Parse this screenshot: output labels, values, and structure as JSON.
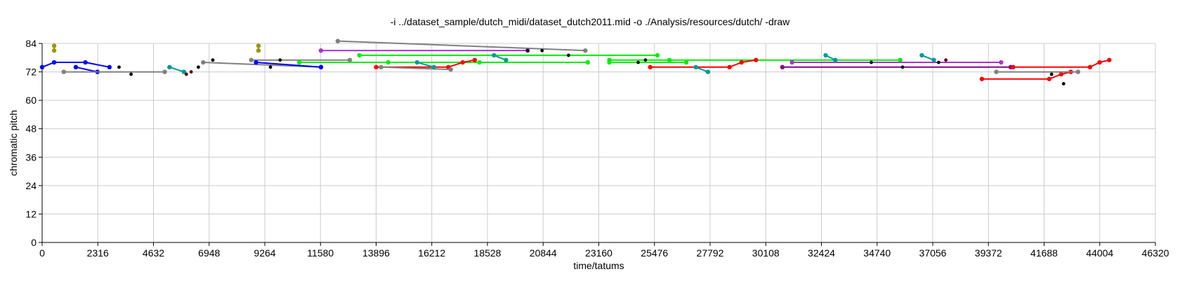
{
  "chart_data": {
    "type": "scatter",
    "title": "-i ../dataset_sample/dutch_midi/dataset_dutch2011.mid -o ./Analysis/resources/dutch/ -draw",
    "xlabel": "time/tatums",
    "ylabel": "chromatic pitch",
    "xlim": [
      0,
      46320
    ],
    "ylim": [
      0,
      84
    ],
    "x_ticks": [
      "0",
      "2316",
      "4632",
      "6948",
      "9264",
      "11580",
      "13896",
      "16212",
      "18528",
      "20844",
      "23160",
      "25476",
      "27792",
      "30108",
      "32424",
      "34740",
      "37056",
      "39372",
      "41688",
      "44004",
      "46320"
    ],
    "y_ticks": [
      "0",
      "12",
      "24",
      "36",
      "48",
      "60",
      "72",
      "84"
    ],
    "grid": true,
    "colors": {
      "blue": "#0000ff",
      "gray": "#808080",
      "teal": "#009999",
      "olive": "#999900",
      "green": "#00ee00",
      "magenta": "#aa33cc",
      "purple": "#880088",
      "red": "#ff0000",
      "black": "#000000",
      "darkred": "#660000",
      "grid": "#cccccc"
    },
    "series": [
      {
        "color": "blue",
        "points": [
          [
            0,
            74
          ],
          [
            500,
            76
          ],
          [
            1800,
            76
          ],
          [
            2800,
            74
          ]
        ]
      },
      {
        "color": "blue",
        "points": [
          [
            1400,
            74
          ],
          [
            2300,
            72
          ]
        ]
      },
      {
        "color": "gray",
        "points": [
          [
            900,
            72
          ],
          [
            5100,
            72
          ]
        ]
      },
      {
        "color": "teal",
        "points": [
          [
            5300,
            74
          ],
          [
            5900,
            72
          ]
        ]
      },
      {
        "color": "olive",
        "points": [
          [
            500,
            81
          ],
          [
            500,
            83
          ]
        ]
      },
      {
        "color": "olive",
        "points": [
          [
            9000,
            81
          ],
          [
            9000,
            83
          ]
        ]
      },
      {
        "color": "gray",
        "points": [
          [
            6700,
            76
          ],
          [
            11600,
            74
          ]
        ]
      },
      {
        "color": "gray",
        "points": [
          [
            8700,
            77
          ],
          [
            12800,
            77
          ]
        ]
      },
      {
        "color": "blue",
        "points": [
          [
            8900,
            76
          ],
          [
            11600,
            74
          ]
        ]
      },
      {
        "color": "gray",
        "points": [
          [
            12300,
            85
          ],
          [
            22600,
            81
          ]
        ]
      },
      {
        "color": "magenta",
        "points": [
          [
            11600,
            81
          ],
          [
            20200,
            81
          ]
        ]
      },
      {
        "color": "green",
        "points": [
          [
            13200,
            79
          ],
          [
            25600,
            79
          ]
        ]
      },
      {
        "color": "green",
        "points": [
          [
            10700,
            76
          ],
          [
            14400,
            76
          ],
          [
            18200,
            76
          ],
          [
            22700,
            76
          ]
        ]
      },
      {
        "color": "green",
        "points": [
          [
            23600,
            77
          ],
          [
            26100,
            77
          ],
          [
            35700,
            77
          ]
        ]
      },
      {
        "color": "green",
        "points": [
          [
            23600,
            76
          ],
          [
            26800,
            76
          ]
        ]
      },
      {
        "color": "red",
        "points": [
          [
            13900,
            74
          ],
          [
            16900,
            74
          ],
          [
            17500,
            76
          ],
          [
            18000,
            77
          ]
        ]
      },
      {
        "color": "gray",
        "points": [
          [
            14100,
            74
          ],
          [
            17000,
            73
          ]
        ]
      },
      {
        "color": "teal",
        "points": [
          [
            15600,
            76
          ],
          [
            16300,
            74
          ]
        ]
      },
      {
        "color": "teal",
        "points": [
          [
            18800,
            79
          ],
          [
            19300,
            77
          ]
        ]
      },
      {
        "color": "red",
        "points": [
          [
            25300,
            74
          ],
          [
            28600,
            74
          ],
          [
            29100,
            76
          ],
          [
            29700,
            77
          ]
        ]
      },
      {
        "color": "teal",
        "points": [
          [
            27200,
            74
          ],
          [
            27700,
            72
          ]
        ]
      },
      {
        "color": "purple",
        "points": [
          [
            30800,
            74
          ],
          [
            40300,
            74
          ]
        ]
      },
      {
        "color": "magenta",
        "points": [
          [
            31200,
            76
          ],
          [
            39900,
            76
          ]
        ]
      },
      {
        "color": "teal",
        "points": [
          [
            32600,
            79
          ],
          [
            33000,
            77
          ]
        ]
      },
      {
        "color": "teal",
        "points": [
          [
            36600,
            79
          ],
          [
            37100,
            77
          ]
        ]
      },
      {
        "color": "red",
        "points": [
          [
            40400,
            74
          ],
          [
            43600,
            74
          ],
          [
            44000,
            76
          ],
          [
            44400,
            77
          ]
        ]
      },
      {
        "color": "red",
        "points": [
          [
            39100,
            69
          ],
          [
            41900,
            69
          ],
          [
            42400,
            71
          ],
          [
            42800,
            72
          ]
        ]
      },
      {
        "color": "gray",
        "points": [
          [
            39700,
            72
          ],
          [
            43100,
            72
          ]
        ]
      }
    ],
    "dots": [
      {
        "color": "black",
        "x": 3200,
        "y": 74
      },
      {
        "color": "black",
        "x": 3700,
        "y": 71
      },
      {
        "color": "darkred",
        "x": 6000,
        "y": 71
      },
      {
        "color": "darkred",
        "x": 6200,
        "y": 72
      },
      {
        "color": "black",
        "x": 6500,
        "y": 74
      },
      {
        "color": "black",
        "x": 7100,
        "y": 77
      },
      {
        "color": "black",
        "x": 9500,
        "y": 74
      },
      {
        "color": "black",
        "x": 9900,
        "y": 77
      },
      {
        "color": "black",
        "x": 20200,
        "y": 81
      },
      {
        "color": "black",
        "x": 20800,
        "y": 81
      },
      {
        "color": "black",
        "x": 21900,
        "y": 79
      },
      {
        "color": "black",
        "x": 24800,
        "y": 76
      },
      {
        "color": "black",
        "x": 25100,
        "y": 77
      },
      {
        "color": "black",
        "x": 34500,
        "y": 76
      },
      {
        "color": "black",
        "x": 35800,
        "y": 74
      },
      {
        "color": "black",
        "x": 37300,
        "y": 76
      },
      {
        "color": "darkred",
        "x": 37600,
        "y": 77
      },
      {
        "color": "black",
        "x": 42000,
        "y": 71
      },
      {
        "color": "black",
        "x": 42500,
        "y": 67
      }
    ]
  }
}
